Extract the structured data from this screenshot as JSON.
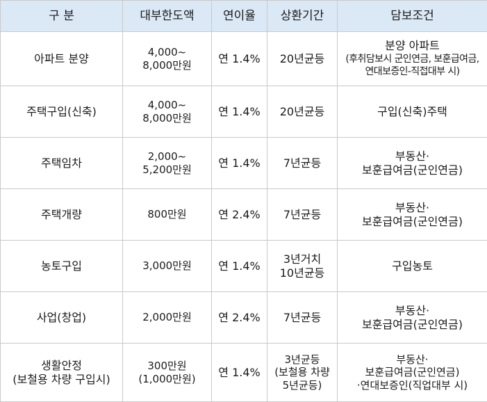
{
  "headers": [
    "구 분",
    "대부한도액",
    "연이율",
    "상환기간",
    "담보조건"
  ],
  "rows": [
    {
      "category": [
        "아파트 분양"
      ],
      "limit": [
        "4,000~",
        "8,000만원"
      ],
      "rate": "연 1.4%",
      "term": [
        "20년균등"
      ],
      "condition": [
        "분양 아파트",
        "(후취담보시 군인연금, 보훈급여금,",
        "연대보증인-직접대부 시)"
      ]
    },
    {
      "category": [
        "주택구입(신축)"
      ],
      "limit": [
        "4,000~",
        "8,000만원"
      ],
      "rate": "연 1.4%",
      "term": [
        "20년균등"
      ],
      "condition": [
        "구입(신축)주택"
      ]
    },
    {
      "category": [
        "주택임차"
      ],
      "limit": [
        "2,000~",
        "5,200만원"
      ],
      "rate": "연 1.4%",
      "term": [
        "7년균등"
      ],
      "condition": [
        "부동산·",
        "보훈급여금(군인연금)"
      ]
    },
    {
      "category": [
        "주택개량"
      ],
      "limit": [
        "800만원"
      ],
      "rate": "연 2.4%",
      "term": [
        "7년균등"
      ],
      "condition": [
        "부동산·",
        "보훈급여금(군인연금)"
      ]
    },
    {
      "category": [
        "농토구입"
      ],
      "limit": [
        "3,000만원"
      ],
      "rate": "연 1.4%",
      "term": [
        "3년거치",
        "10년균등"
      ],
      "condition": [
        "구입농토"
      ]
    },
    {
      "category": [
        "사업(창업)"
      ],
      "limit": [
        "2,000만원"
      ],
      "rate": "연 2.4%",
      "term": [
        "7년균등"
      ],
      "condition": [
        "부동산·",
        "보훈급여금(군인연금)"
      ]
    },
    {
      "category": [
        "생활안정",
        "(보철용 차량 구입시)"
      ],
      "limit": [
        "300만원",
        "(1,000만원)"
      ],
      "rate": "연 1.4%",
      "term": [
        "3년균등",
        "(보철용 차량",
        "5년균등)"
      ],
      "condition": [
        "부동산·",
        "보훈급여금(군인연금)",
        "·연대보증인(직업대부 시)"
      ]
    }
  ]
}
